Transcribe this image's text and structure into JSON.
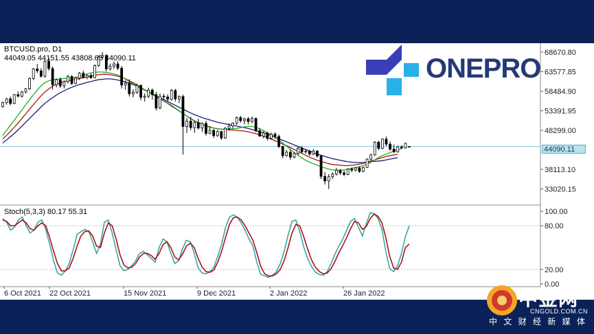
{
  "header": {
    "symbol": "BTCUSD.pro, D1",
    "ohlc": "44049.05 44151.55 43808.65 44090.11"
  },
  "logo": {
    "brand": "ONEPRO"
  },
  "watermark": {
    "name": "中金网",
    "url": "CNGOLD.COM.CN",
    "slogan": "中 文 财 经 新 媒 体"
  },
  "colors": {
    "bull": "#ffffff",
    "bear": "#000000",
    "ma_fast": "#22aa22",
    "ma_mid": "#aa1111",
    "ma_slow": "#1a1a7a",
    "stoch_main": "#3aa6a6",
    "stoch_signal": "#aa1111",
    "price_line": "#7fc4d8"
  },
  "chart_data": [
    {
      "type": "candlestick",
      "title": "BTCUSD.pro, D1",
      "yticks": [
        68670.8,
        63577.85,
        58484.9,
        53391.95,
        48299.0,
        38113.1,
        33020.15
      ],
      "ytick_labels": [
        "68670.80",
        "63577.85",
        "58484.90",
        "53391.95",
        "48299.00",
        "38113.10",
        "33020.15"
      ],
      "ylim": [
        29000,
        71000
      ],
      "current_price": 44090.11,
      "current_price_label": "44090.11",
      "xticks": [
        "6 Oct 2021",
        "22 Oct 2021",
        "15 Nov 2021",
        "9 Dec 2021",
        "2 Jan 2022",
        "26 Jan 2022"
      ],
      "candles": [
        [
          54500,
          55800,
          54200,
          55500
        ],
        [
          55500,
          56800,
          55000,
          56500
        ],
        [
          56500,
          57100,
          54800,
          55300
        ],
        [
          55300,
          57800,
          55100,
          57600
        ],
        [
          57600,
          58400,
          56900,
          57200
        ],
        [
          57200,
          58600,
          56800,
          58300
        ],
        [
          58300,
          59300,
          57900,
          59100
        ],
        [
          59100,
          62100,
          58800,
          61800
        ],
        [
          61800,
          64500,
          61400,
          64300
        ],
        [
          64300,
          65600,
          63200,
          63800
        ],
        [
          63800,
          64500,
          62000,
          62400
        ],
        [
          62400,
          66800,
          62000,
          66300
        ],
        [
          66300,
          67200,
          63800,
          64400
        ],
        [
          64400,
          65000,
          58900,
          60200
        ],
        [
          60200,
          61800,
          59500,
          61500
        ],
        [
          61500,
          62100,
          59300,
          59900
        ],
        [
          59900,
          61300,
          59200,
          61000
        ],
        [
          61000,
          62800,
          60500,
          62300
        ],
        [
          62300,
          62700,
          60100,
          60500
        ],
        [
          60500,
          62200,
          60300,
          61900
        ],
        [
          61900,
          63500,
          61400,
          63200
        ],
        [
          63200,
          63800,
          61800,
          62100
        ],
        [
          62100,
          62900,
          61600,
          62600
        ],
        [
          62600,
          63100,
          61800,
          62000
        ],
        [
          62000,
          65500,
          61900,
          65200
        ],
        [
          65200,
          67800,
          64800,
          67400
        ],
        [
          67400,
          68700,
          66800,
          67800
        ],
        [
          67800,
          68200,
          63600,
          64300
        ],
        [
          64300,
          65700,
          63900,
          65000
        ],
        [
          65000,
          66200,
          64300,
          65600
        ],
        [
          65600,
          66300,
          64000,
          64500
        ],
        [
          64500,
          65100,
          59200,
          60100
        ],
        [
          60100,
          61300,
          58900,
          60600
        ],
        [
          60600,
          61600,
          57100,
          57800
        ],
        [
          57800,
          59000,
          56900,
          58200
        ],
        [
          58200,
          60500,
          57800,
          60000
        ],
        [
          60000,
          60300,
          56100,
          56900
        ],
        [
          56900,
          57900,
          55800,
          57200
        ],
        [
          57200,
          59400,
          56700,
          58800
        ],
        [
          58800,
          59200,
          56300,
          57600
        ],
        [
          57600,
          58300,
          53500,
          54100
        ],
        [
          54100,
          57900,
          53800,
          57200
        ],
        [
          57200,
          57800,
          56200,
          57000
        ],
        [
          57000,
          57700,
          55800,
          56400
        ],
        [
          56400,
          59100,
          56000,
          58700
        ],
        [
          58700,
          59100,
          55800,
          56500
        ],
        [
          56500,
          57400,
          55400,
          57100
        ],
        [
          57100,
          57600,
          42000,
          49300
        ],
        [
          49300,
          51500,
          47600,
          50700
        ],
        [
          50700,
          51800,
          48300,
          49000
        ],
        [
          49000,
          50700,
          47600,
          50300
        ],
        [
          50300,
          51300,
          48500,
          48900
        ],
        [
          48900,
          50400,
          47900,
          50100
        ],
        [
          50100,
          50800,
          46900,
          47500
        ],
        [
          47500,
          49300,
          47300,
          48300
        ],
        [
          48300,
          48600,
          46300,
          46900
        ],
        [
          46900,
          48400,
          46600,
          48000
        ],
        [
          48000,
          48200,
          45800,
          46300
        ],
        [
          46300,
          49200,
          46100,
          48800
        ],
        [
          48800,
          50100,
          48400,
          49400
        ],
        [
          49400,
          50400,
          48800,
          50200
        ],
        [
          50200,
          51900,
          49700,
          51600
        ],
        [
          51600,
          52100,
          50300,
          50800
        ],
        [
          50800,
          51600,
          49900,
          51300
        ],
        [
          51300,
          51800,
          49800,
          50600
        ],
        [
          50600,
          51900,
          50200,
          51400
        ],
        [
          51400,
          51600,
          47800,
          48200
        ],
        [
          48200,
          48900,
          46600,
          46800
        ],
        [
          46800,
          48200,
          46200,
          47600
        ],
        [
          47600,
          47900,
          45600,
          46200
        ],
        [
          46200,
          47700,
          45900,
          47300
        ],
        [
          47300,
          47800,
          46100,
          46700
        ],
        [
          46700,
          47200,
          43700,
          44100
        ],
        [
          44100,
          44300,
          41000,
          41700
        ],
        [
          41700,
          43200,
          41400,
          42600
        ],
        [
          42600,
          43300,
          40600,
          41300
        ],
        [
          41300,
          42600,
          41000,
          42300
        ],
        [
          42300,
          44100,
          41800,
          43600
        ],
        [
          43600,
          44200,
          42300,
          42700
        ],
        [
          42700,
          43400,
          42200,
          42900
        ],
        [
          42900,
          43200,
          41600,
          42100
        ],
        [
          42100,
          43400,
          41800,
          42900
        ],
        [
          42900,
          43100,
          41200,
          41600
        ],
        [
          41600,
          41900,
          35600,
          36300
        ],
        [
          36300,
          37400,
          34200,
          35100
        ],
        [
          35100,
          36900,
          33000,
          36200
        ],
        [
          36200,
          37300,
          35600,
          36900
        ],
        [
          36900,
          38500,
          36500,
          37900
        ],
        [
          37900,
          38200,
          36700,
          37200
        ],
        [
          37200,
          37800,
          36300,
          36800
        ],
        [
          36800,
          38400,
          36600,
          38200
        ],
        [
          38200,
          38600,
          37400,
          37900
        ],
        [
          37900,
          38700,
          37600,
          38500
        ],
        [
          38500,
          38900,
          37200,
          37600
        ],
        [
          37600,
          38800,
          37400,
          38600
        ],
        [
          38600,
          41000,
          38500,
          40800
        ],
        [
          40800,
          42200,
          40400,
          41900
        ],
        [
          41900,
          45500,
          41700,
          45200
        ],
        [
          45200,
          45600,
          43100,
          43600
        ],
        [
          43600,
          46200,
          43400,
          46000
        ],
        [
          46000,
          46700,
          44200,
          44700
        ],
        [
          44700,
          45400,
          43000,
          43400
        ],
        [
          43400,
          44600,
          42400,
          42700
        ],
        [
          42700,
          44300,
          42500,
          44000
        ],
        [
          44000,
          44400,
          43400,
          43700
        ],
        [
          43700,
          45100,
          43500,
          44900
        ],
        [
          44049.05,
          44151.55,
          43808.65,
          44090.11
        ]
      ],
      "ma_fast": [
        47000,
        48300,
        49600,
        50900,
        52300,
        53600,
        55000,
        56300,
        57600,
        58800,
        59900,
        60700,
        61200,
        61500,
        61600,
        61700,
        61800,
        61900,
        62000,
        62100,
        62300,
        62600,
        63000,
        63300,
        63400,
        63500,
        63500,
        63400,
        63200,
        63000,
        62700,
        62200,
        61600,
        61000,
        60400,
        59900,
        59400,
        58900,
        58400,
        57900,
        57300,
        56700,
        56000,
        55400,
        54800,
        54100,
        53400,
        52700,
        52000,
        51300,
        50700,
        50200,
        49800,
        49400,
        49100,
        48900,
        48700,
        48600,
        48600,
        48600,
        48700,
        48800,
        49000,
        49200,
        49300,
        49300,
        49100,
        48700,
        48200,
        47700,
        47100,
        46500,
        45800,
        45000,
        44200,
        43300,
        42500,
        41800,
        41100,
        40500,
        40000,
        39600,
        39200,
        38800,
        38500,
        38200,
        38000,
        37900,
        37900,
        38000,
        38200,
        38400,
        38600,
        38800,
        39100,
        39500,
        40000,
        40600,
        41200,
        41700,
        42100,
        42500,
        42900,
        43200,
        43500
      ],
      "ma_mid": [
        46000,
        47000,
        48000,
        49100,
        50200,
        51400,
        52600,
        53800,
        55000,
        56200,
        57300,
        58300,
        59100,
        59800,
        60300,
        60700,
        61000,
        61200,
        61400,
        61600,
        61800,
        62000,
        62200,
        62500,
        62700,
        62800,
        62900,
        62900,
        62800,
        62600,
        62400,
        62100,
        61700,
        61200,
        60700,
        60100,
        59500,
        58900,
        58300,
        57700,
        57100,
        56500,
        55900,
        55300,
        54600,
        54000,
        53300,
        52700,
        52000,
        51400,
        50800,
        50300,
        49900,
        49500,
        49200,
        48900,
        48700,
        48600,
        48500,
        48400,
        48400,
        48300,
        48200,
        48100,
        47900,
        47700,
        47400,
        47100,
        46800,
        46400,
        46000,
        45600,
        45200,
        44700,
        44300,
        43800,
        43300,
        42800,
        42300,
        41800,
        41300,
        40900,
        40500,
        40200,
        39900,
        39600,
        39400,
        39300,
        39200,
        39100,
        39100,
        39200,
        39300,
        39500,
        39700,
        40000,
        40300,
        40600,
        40900,
        41200,
        41500,
        41700,
        41900,
        42100
      ],
      "ma_slow": [
        45000,
        45800,
        46600,
        47500,
        48400,
        49400,
        50400,
        51400,
        52400,
        53400,
        54400,
        55300,
        56100,
        56800,
        57500,
        58100,
        58600,
        59100,
        59500,
        59900,
        60200,
        60500,
        60800,
        61000,
        61300,
        61500,
        61600,
        61700,
        61700,
        61600,
        61400,
        61200,
        60900,
        60600,
        60200,
        59800,
        59300,
        58800,
        58300,
        57800,
        57300,
        56800,
        56300,
        55800,
        55300,
        54800,
        54300,
        53800,
        53300,
        52800,
        52400,
        52000,
        51600,
        51300,
        51000,
        50700,
        50400,
        50200,
        50000,
        49800,
        49600,
        49400,
        49200,
        49000,
        48800,
        48500,
        48200,
        47900,
        47600,
        47300,
        46900,
        46500,
        46100,
        45700,
        45300,
        44900,
        44500,
        44100,
        43700,
        43300,
        42900,
        42500,
        42100,
        41800,
        41500,
        41200,
        40900,
        40700,
        40500,
        40300,
        40100,
        40000,
        39900,
        39900,
        39900,
        40000,
        40100,
        40200,
        40300,
        40400,
        40600,
        40800,
        41000,
        41200
      ]
    },
    {
      "type": "line",
      "title": "Stoch(5,3,3) 80.17 55.31",
      "yticks": [
        100,
        80,
        20,
        0
      ],
      "ytick_labels": [
        "100.00",
        "80.00",
        "20.00",
        "0.00"
      ],
      "ylim": [
        0,
        100
      ],
      "levels": [
        80,
        20
      ],
      "series": [
        {
          "name": "main",
          "values": [
            90,
            85,
            74,
            78,
            88,
            92,
            80,
            70,
            74,
            85,
            88,
            75,
            55,
            32,
            15,
            12,
            18,
            28,
            47,
            68,
            72,
            75,
            72,
            58,
            42,
            55,
            85,
            88,
            70,
            47,
            25,
            18,
            20,
            25,
            32,
            42,
            45,
            40,
            35,
            30,
            50,
            62,
            58,
            42,
            28,
            32,
            48,
            60,
            58,
            42,
            22,
            15,
            14,
            17,
            23,
            38,
            55,
            78,
            92,
            95,
            92,
            84,
            74,
            62,
            52,
            30,
            13,
            11,
            9,
            12,
            17,
            28,
            45,
            67,
            86,
            88,
            72,
            51,
            35,
            24,
            16,
            13,
            12,
            17,
            28,
            41,
            52,
            62,
            74,
            86,
            90,
            78,
            66,
            83,
            98,
            97,
            90,
            75,
            45,
            21,
            17,
            25,
            42,
            65,
            80
          ]
        },
        {
          "name": "signal",
          "values": [
            88,
            86,
            80,
            80,
            84,
            88,
            84,
            76,
            74,
            80,
            84,
            80,
            64,
            45,
            28,
            18,
            18,
            22,
            35,
            52,
            66,
            72,
            73,
            66,
            52,
            50,
            70,
            84,
            80,
            62,
            40,
            26,
            22,
            23,
            28,
            37,
            42,
            42,
            39,
            34,
            42,
            54,
            58,
            50,
            37,
            33,
            41,
            52,
            56,
            50,
            35,
            23,
            17,
            16,
            19,
            30,
            45,
            64,
            82,
            91,
            92,
            88,
            80,
            70,
            60,
            43,
            24,
            14,
            11,
            11,
            14,
            20,
            32,
            50,
            70,
            82,
            80,
            65,
            48,
            33,
            23,
            17,
            14,
            15,
            21,
            31,
            43,
            53,
            64,
            76,
            86,
            84,
            75,
            79,
            90,
            96,
            93,
            84,
            64,
            38,
            22,
            20,
            30,
            50,
            55
          ]
        }
      ]
    }
  ]
}
